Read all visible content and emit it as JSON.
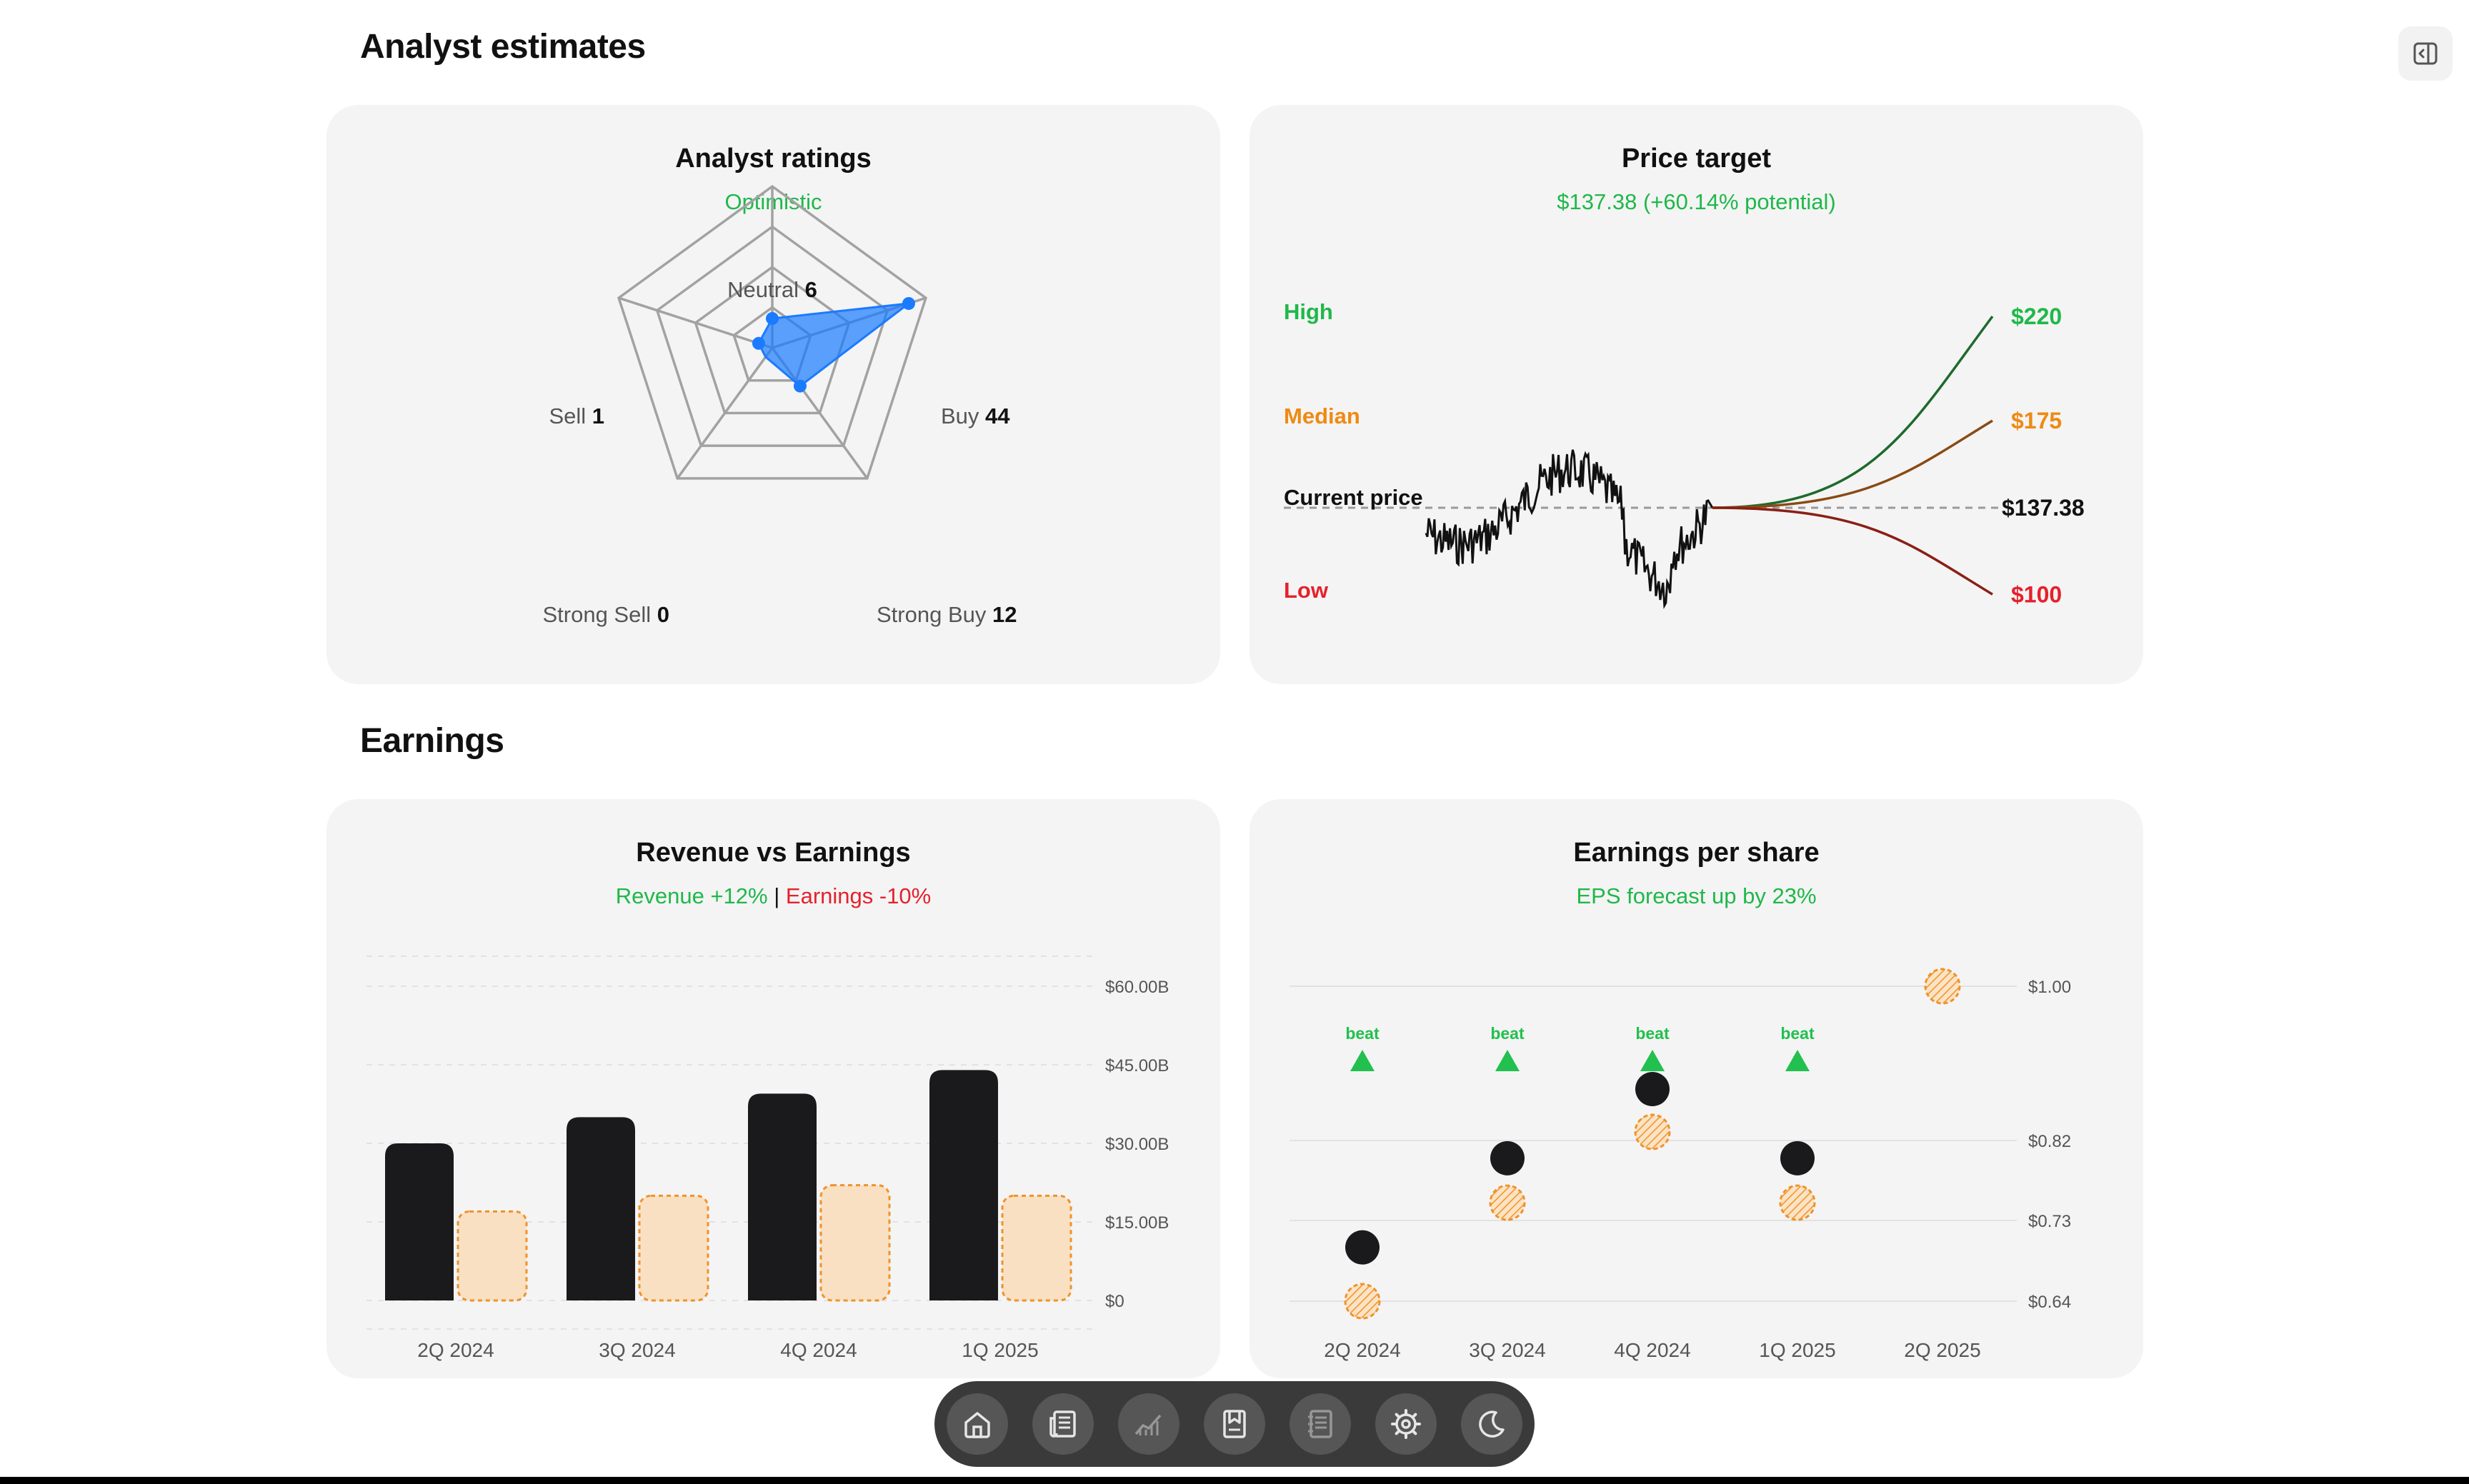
{
  "sections": {
    "analyst": "Analyst estimates",
    "earnings": "Earnings"
  },
  "ratings": {
    "title": "Analyst ratings",
    "subtitle": "Optimistic",
    "axes": [
      {
        "label": "Neutral",
        "count": 6
      },
      {
        "label": "Buy",
        "count": 44
      },
      {
        "label": "Strong Buy",
        "count": 12
      },
      {
        "label": "Strong Sell",
        "count": 0
      },
      {
        "label": "Sell",
        "count": 1
      }
    ],
    "max": 50,
    "fill_color": "#1a7bff"
  },
  "price_target": {
    "title": "Price target",
    "subtitle": "$137.38 (+60.14% potential)",
    "labels": {
      "high": "High",
      "median": "Median",
      "current": "Current price",
      "low": "Low"
    },
    "values": {
      "high": "$220",
      "median": "$175",
      "current": "$137.38",
      "low": "$100"
    },
    "numeric": {
      "high": 220,
      "median": 175,
      "current": 137.38,
      "low": 100
    }
  },
  "revenue": {
    "title": "Revenue vs Earnings",
    "subtitle_revenue": "Revenue +12%",
    "subtitle_sep": "|",
    "subtitle_earnings": "Earnings -10%"
  },
  "eps": {
    "title": "Earnings per share",
    "subtitle": "EPS forecast up by 23%"
  },
  "chart_data": [
    {
      "type": "bar",
      "categories": [
        "2Q 2024",
        "3Q 2024",
        "4Q 2024",
        "1Q 2025"
      ],
      "series": [
        {
          "values": [
            30.0,
            35.0,
            39.5,
            44.0
          ]
        },
        {
          "values": [
            17.0,
            20.0,
            22.0,
            20.0
          ]
        }
      ],
      "yticks": [
        "$0",
        "$15.00B",
        "$30.00B",
        "$45.00B",
        "$60.00B"
      ],
      "ylim": [
        0,
        60
      ],
      "colors": [
        "#1a1a1c",
        "#f9e0c3"
      ]
    },
    {
      "type": "scatter",
      "categories": [
        "2Q 2024",
        "3Q 2024",
        "4Q 2024",
        "1Q 2025",
        "2Q 2025"
      ],
      "series": [
        {
          "values": [
            0.7,
            0.8,
            0.88,
            0.8,
            null
          ]
        },
        {
          "values": [
            0.64,
            0.75,
            0.83,
            0.75,
            1.0
          ]
        }
      ],
      "beat_label": "beat",
      "beats": [
        true,
        true,
        true,
        true,
        false
      ],
      "yticks": [
        {
          "value": 0.64,
          "label": "$0.64"
        },
        {
          "value": 0.73,
          "label": "$0.73"
        },
        {
          "value": 0.82,
          "label": "$0.82"
        },
        {
          "value": 1.0,
          "label": "$1.00"
        }
      ],
      "colors": [
        "#1a1a1c",
        "#f0922a",
        "#22c04e"
      ]
    }
  ],
  "dock": {
    "icons": [
      "home-icon",
      "news-icon",
      "chart-icon",
      "bookmark-icon",
      "notes-icon",
      "settings-icon",
      "moon-icon"
    ]
  }
}
